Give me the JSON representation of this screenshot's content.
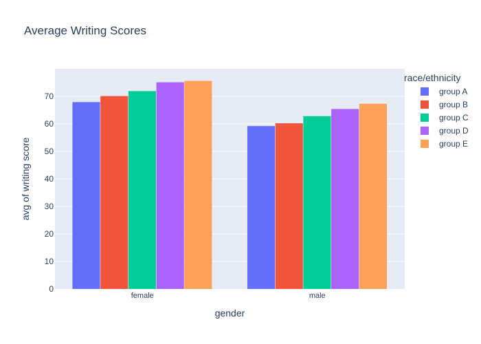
{
  "chart_data": {
    "type": "bar",
    "title": "Average Writing Scores",
    "xlabel": "gender",
    "ylabel": "avg of writing score",
    "categories": [
      "female",
      "male"
    ],
    "ylim": [
      0,
      80
    ],
    "yticks": [
      0,
      10,
      20,
      30,
      40,
      50,
      60,
      70
    ],
    "grid": true,
    "legend": {
      "title": "race/ethnicity",
      "placement": "right"
    },
    "series": [
      {
        "name": "group A",
        "color": "#636efa",
        "values": [
          67.9,
          59.2
        ]
      },
      {
        "name": "group B",
        "color": "#ef553b",
        "values": [
          70.1,
          60.2
        ]
      },
      {
        "name": "group C",
        "color": "#00cc96",
        "values": [
          71.9,
          62.8
        ]
      },
      {
        "name": "group D",
        "color": "#ab63fa",
        "values": [
          75.1,
          65.4
        ]
      },
      {
        "name": "group E",
        "color": "#ffa15a",
        "values": [
          75.6,
          67.3
        ]
      }
    ]
  },
  "colors": {
    "plot_background": "#e5ecf6",
    "gridline": "#ffffff",
    "text": "#2a3f5f"
  }
}
